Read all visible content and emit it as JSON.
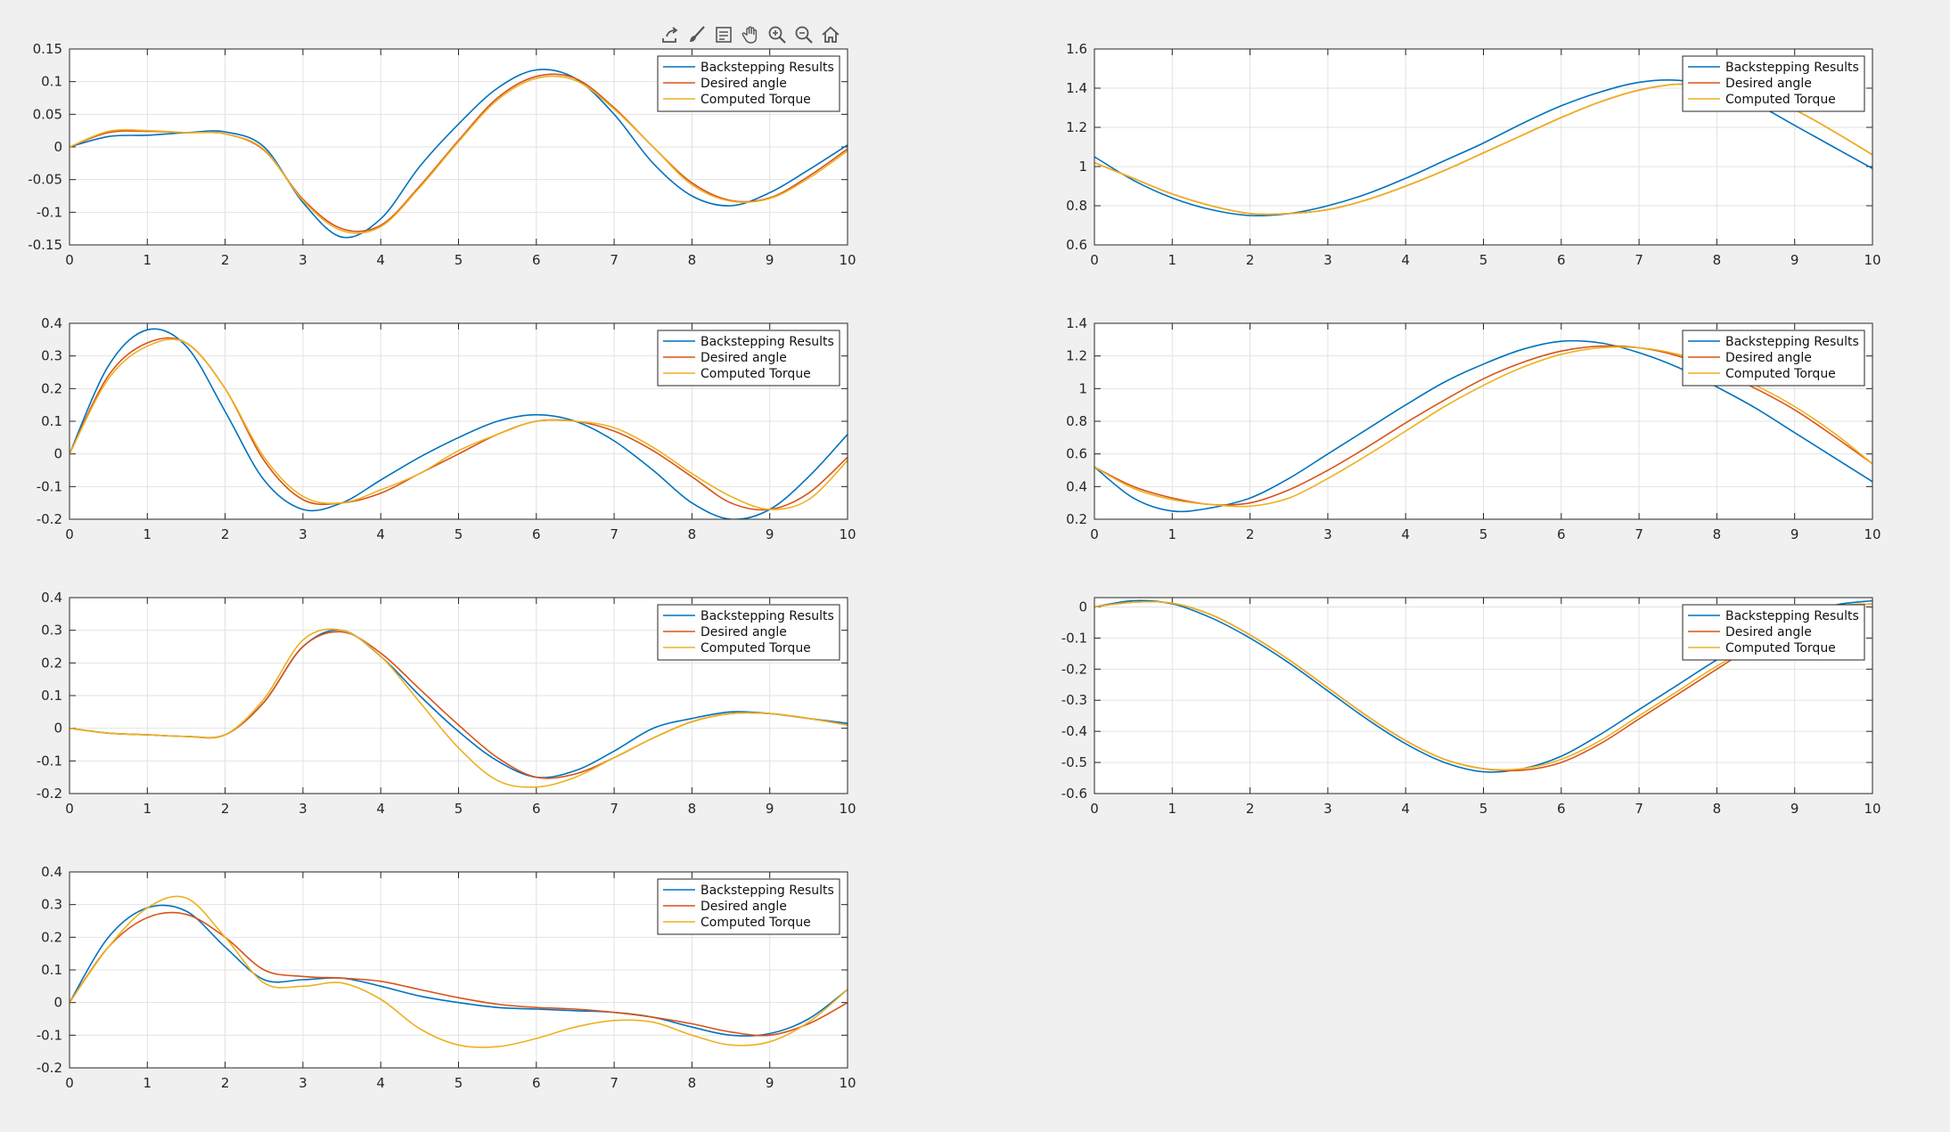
{
  "toolbar": [
    {
      "name": "export-icon",
      "label": "export"
    },
    {
      "name": "brush-icon",
      "label": "brush"
    },
    {
      "name": "datatip-icon",
      "label": "data tips"
    },
    {
      "name": "pan-icon",
      "label": "pan"
    },
    {
      "name": "zoom-in-icon",
      "label": "zoom in"
    },
    {
      "name": "zoom-out-icon",
      "label": "zoom out"
    },
    {
      "name": "home-icon",
      "label": "restore view"
    }
  ],
  "colors": {
    "series": [
      "#0072BD",
      "#D95319",
      "#EDB120"
    ],
    "grid": "#e2e2e2",
    "axis": "#262626",
    "background": "#f0f0f0",
    "axes_background": "#ffffff"
  },
  "chart_data": [
    {
      "type": "line",
      "grid": true,
      "legend": "top-right",
      "xlim": [
        0,
        10
      ],
      "ylim": [
        -0.15,
        0.15
      ],
      "xticks": [
        "0",
        "1",
        "2",
        "3",
        "4",
        "5",
        "6",
        "7",
        "8",
        "9",
        "10"
      ],
      "yticks": [
        "-0.15",
        "-0.1",
        "-0.05",
        "0",
        "0.05",
        "0.1",
        "0.15"
      ],
      "x": [
        0,
        0.5,
        1,
        1.5,
        2,
        2.5,
        3,
        3.5,
        4,
        4.5,
        5,
        5.5,
        6,
        6.5,
        7,
        7.5,
        8,
        8.5,
        9,
        9.5,
        10
      ],
      "series": [
        {
          "name": "Backstepping Results",
          "values": [
            0,
            0.016,
            0.018,
            0.022,
            0.023,
            0,
            -0.085,
            -0.138,
            -0.11,
            -0.03,
            0.035,
            0.09,
            0.118,
            0.105,
            0.05,
            -0.025,
            -0.075,
            -0.09,
            -0.07,
            -0.035,
            0.003
          ]
        },
        {
          "name": "Desired angle",
          "values": [
            0,
            0.022,
            0.024,
            0.022,
            0.02,
            -0.005,
            -0.08,
            -0.125,
            -0.12,
            -0.06,
            0.01,
            0.075,
            0.108,
            0.105,
            0.06,
            0,
            -0.055,
            -0.082,
            -0.078,
            -0.045,
            -0.003
          ]
        },
        {
          "name": "Computed Torque",
          "values": [
            0,
            0.024,
            0.025,
            0.022,
            0.02,
            -0.004,
            -0.082,
            -0.128,
            -0.122,
            -0.062,
            0.008,
            0.072,
            0.105,
            0.102,
            0.058,
            0,
            -0.058,
            -0.083,
            -0.079,
            -0.048,
            -0.006
          ]
        }
      ]
    },
    {
      "type": "line",
      "grid": true,
      "legend": "top-right",
      "xlim": [
        0,
        10
      ],
      "ylim": [
        0.6,
        1.6
      ],
      "xticks": [
        "0",
        "1",
        "2",
        "3",
        "4",
        "5",
        "6",
        "7",
        "8",
        "9",
        "10"
      ],
      "yticks": [
        "0.6",
        "0.8",
        "1",
        "1.2",
        "1.4",
        "1.6"
      ],
      "x": [
        0,
        0.5,
        1,
        1.5,
        2,
        2.5,
        3,
        3.5,
        4,
        4.5,
        5,
        5.5,
        6,
        6.5,
        7,
        7.5,
        8,
        8.5,
        9,
        9.5,
        10
      ],
      "series": [
        {
          "name": "Backstepping Results",
          "values": [
            1.05,
            0.93,
            0.84,
            0.78,
            0.75,
            0.76,
            0.8,
            0.86,
            0.94,
            1.03,
            1.12,
            1.22,
            1.31,
            1.38,
            1.43,
            1.44,
            1.4,
            1.32,
            1.21,
            1.1,
            0.99
          ]
        },
        {
          "name": "Desired angle",
          "values": [
            1.02,
            0.94,
            0.86,
            0.8,
            0.76,
            0.76,
            0.78,
            0.83,
            0.9,
            0.98,
            1.07,
            1.16,
            1.25,
            1.33,
            1.39,
            1.42,
            1.41,
            1.37,
            1.29,
            1.18,
            1.06
          ]
        },
        {
          "name": "Computed Torque",
          "values": [
            1.02,
            0.94,
            0.86,
            0.8,
            0.76,
            0.76,
            0.78,
            0.83,
            0.9,
            0.98,
            1.07,
            1.16,
            1.25,
            1.33,
            1.39,
            1.42,
            1.41,
            1.37,
            1.29,
            1.18,
            1.06
          ]
        }
      ]
    },
    {
      "type": "line",
      "grid": true,
      "legend": "top-right",
      "xlim": [
        0,
        10
      ],
      "ylim": [
        -0.2,
        0.4
      ],
      "xticks": [
        "0",
        "1",
        "2",
        "3",
        "4",
        "5",
        "6",
        "7",
        "8",
        "9",
        "10"
      ],
      "yticks": [
        "-0.2",
        "-0.1",
        "0",
        "0.1",
        "0.2",
        "0.3",
        "0.4"
      ],
      "x": [
        0,
        0.5,
        1,
        1.5,
        2,
        2.5,
        3,
        3.5,
        4,
        4.5,
        5,
        5.5,
        6,
        6.5,
        7,
        7.5,
        8,
        8.5,
        9,
        9.5,
        10
      ],
      "series": [
        {
          "name": "Backstepping Results",
          "values": [
            0,
            0.27,
            0.38,
            0.33,
            0.13,
            -0.08,
            -0.17,
            -0.15,
            -0.08,
            -0.01,
            0.05,
            0.1,
            0.12,
            0.1,
            0.04,
            -0.05,
            -0.15,
            -0.2,
            -0.17,
            -0.07,
            0.06
          ]
        },
        {
          "name": "Desired angle",
          "values": [
            0,
            0.24,
            0.34,
            0.34,
            0.2,
            -0.02,
            -0.14,
            -0.15,
            -0.12,
            -0.06,
            0,
            0.06,
            0.1,
            0.1,
            0.07,
            0.01,
            -0.07,
            -0.15,
            -0.17,
            -0.12,
            -0.01
          ]
        },
        {
          "name": "Computed Torque",
          "values": [
            0,
            0.23,
            0.33,
            0.34,
            0.2,
            -0.01,
            -0.13,
            -0.15,
            -0.11,
            -0.06,
            0.01,
            0.06,
            0.1,
            0.1,
            0.08,
            0.02,
            -0.06,
            -0.13,
            -0.17,
            -0.14,
            -0.02
          ]
        }
      ]
    },
    {
      "type": "line",
      "grid": true,
      "legend": "top-right",
      "xlim": [
        0,
        10
      ],
      "ylim": [
        0.2,
        1.4
      ],
      "xticks": [
        "0",
        "1",
        "2",
        "3",
        "4",
        "5",
        "6",
        "7",
        "8",
        "9",
        "10"
      ],
      "yticks": [
        "0.2",
        "0.4",
        "0.6",
        "0.8",
        "1",
        "1.2",
        "1.4"
      ],
      "x": [
        0,
        0.5,
        1,
        1.5,
        2,
        2.5,
        3,
        3.5,
        4,
        4.5,
        5,
        5.5,
        6,
        6.5,
        7,
        7.5,
        8,
        8.5,
        9,
        9.5,
        10
      ],
      "series": [
        {
          "name": "Backstepping Results",
          "values": [
            0.52,
            0.33,
            0.25,
            0.27,
            0.33,
            0.45,
            0.6,
            0.75,
            0.9,
            1.04,
            1.15,
            1.24,
            1.29,
            1.28,
            1.22,
            1.13,
            1.01,
            0.88,
            0.73,
            0.58,
            0.43
          ]
        },
        {
          "name": "Desired angle",
          "values": [
            0.52,
            0.4,
            0.33,
            0.29,
            0.3,
            0.38,
            0.5,
            0.64,
            0.79,
            0.93,
            1.06,
            1.16,
            1.23,
            1.26,
            1.25,
            1.2,
            1.11,
            1.0,
            0.87,
            0.71,
            0.54
          ]
        },
        {
          "name": "Computed Torque",
          "values": [
            0.52,
            0.39,
            0.32,
            0.29,
            0.28,
            0.33,
            0.45,
            0.59,
            0.74,
            0.89,
            1.02,
            1.13,
            1.21,
            1.25,
            1.25,
            1.21,
            1.13,
            1.02,
            0.89,
            0.73,
            0.54
          ]
        }
      ]
    },
    {
      "type": "line",
      "grid": true,
      "legend": "top-right",
      "xlim": [
        0,
        10
      ],
      "ylim": [
        -0.2,
        0.4
      ],
      "xticks": [
        "0",
        "1",
        "2",
        "3",
        "4",
        "5",
        "6",
        "7",
        "8",
        "9",
        "10"
      ],
      "yticks": [
        "-0.2",
        "-0.1",
        "0",
        "0.1",
        "0.2",
        "0.3",
        "0.4"
      ],
      "x": [
        0,
        0.5,
        1,
        1.5,
        2,
        2.5,
        3,
        3.5,
        4,
        4.5,
        5,
        5.5,
        6,
        6.5,
        7,
        7.5,
        8,
        8.5,
        9,
        9.5,
        10
      ],
      "series": [
        {
          "name": "Backstepping Results",
          "values": [
            0,
            -0.015,
            -0.02,
            -0.025,
            -0.02,
            0.08,
            0.25,
            0.3,
            0.22,
            0.1,
            -0.01,
            -0.1,
            -0.15,
            -0.13,
            -0.07,
            0,
            0.03,
            0.05,
            0.045,
            0.03,
            0.015
          ]
        },
        {
          "name": "Desired angle",
          "values": [
            0,
            -0.015,
            -0.02,
            -0.025,
            -0.02,
            0.08,
            0.25,
            0.295,
            0.23,
            0.12,
            0.01,
            -0.09,
            -0.15,
            -0.14,
            -0.09,
            -0.03,
            0.02,
            0.045,
            0.045,
            0.03,
            0.01
          ]
        },
        {
          "name": "Computed Torque",
          "values": [
            0,
            -0.015,
            -0.02,
            -0.025,
            -0.02,
            0.09,
            0.27,
            0.3,
            0.22,
            0.08,
            -0.06,
            -0.16,
            -0.18,
            -0.15,
            -0.09,
            -0.03,
            0.02,
            0.045,
            0.045,
            0.03,
            0.01
          ]
        }
      ]
    },
    {
      "type": "line",
      "grid": true,
      "legend": "top-right",
      "xlim": [
        0,
        10
      ],
      "ylim": [
        -0.6,
        0.03
      ],
      "xticks": [
        "0",
        "1",
        "2",
        "3",
        "4",
        "5",
        "6",
        "7",
        "8",
        "9",
        "10"
      ],
      "yticks": [
        "-0.6",
        "-0.5",
        "-0.4",
        "-0.3",
        "-0.2",
        "-0.1",
        "0"
      ],
      "x": [
        0,
        0.5,
        1,
        1.5,
        2,
        2.5,
        3,
        3.5,
        4,
        4.5,
        5,
        5.5,
        6,
        6.5,
        7,
        7.5,
        8,
        8.5,
        9,
        9.5,
        10
      ],
      "series": [
        {
          "name": "Backstepping Results",
          "values": [
            0,
            0.02,
            0.01,
            -0.035,
            -0.1,
            -0.18,
            -0.27,
            -0.36,
            -0.44,
            -0.5,
            -0.53,
            -0.52,
            -0.48,
            -0.41,
            -0.33,
            -0.25,
            -0.17,
            -0.1,
            -0.04,
            0.005,
            0.02
          ]
        },
        {
          "name": "Desired angle",
          "values": [
            0,
            0.015,
            0.012,
            -0.025,
            -0.09,
            -0.17,
            -0.26,
            -0.35,
            -0.43,
            -0.49,
            -0.52,
            -0.525,
            -0.5,
            -0.44,
            -0.36,
            -0.28,
            -0.2,
            -0.12,
            -0.05,
            0,
            0.01
          ]
        },
        {
          "name": "Computed Torque",
          "values": [
            0,
            0.015,
            0.012,
            -0.025,
            -0.09,
            -0.17,
            -0.26,
            -0.35,
            -0.43,
            -0.49,
            -0.52,
            -0.52,
            -0.49,
            -0.43,
            -0.35,
            -0.27,
            -0.19,
            -0.12,
            -0.05,
            0,
            0.01
          ]
        }
      ]
    },
    {
      "type": "line",
      "grid": true,
      "legend": "top-right",
      "xlim": [
        0,
        10
      ],
      "ylim": [
        -0.2,
        0.4
      ],
      "xticks": [
        "0",
        "1",
        "2",
        "3",
        "4",
        "5",
        "6",
        "7",
        "8",
        "9",
        "10"
      ],
      "yticks": [
        "-0.2",
        "-0.1",
        "0",
        "0.1",
        "0.2",
        "0.3",
        "0.4"
      ],
      "x": [
        0,
        0.5,
        1,
        1.5,
        2,
        2.5,
        3,
        3.5,
        4,
        4.5,
        5,
        5.5,
        6,
        6.5,
        7,
        7.5,
        8,
        8.5,
        9,
        9.5,
        10
      ],
      "series": [
        {
          "name": "Backstepping Results",
          "values": [
            0,
            0.2,
            0.29,
            0.28,
            0.17,
            0.07,
            0.07,
            0.075,
            0.05,
            0.02,
            0,
            -0.015,
            -0.02,
            -0.025,
            -0.03,
            -0.045,
            -0.075,
            -0.1,
            -0.095,
            -0.05,
            0.04
          ]
        },
        {
          "name": "Desired angle",
          "values": [
            0,
            0.17,
            0.26,
            0.27,
            0.2,
            0.1,
            0.08,
            0.075,
            0.065,
            0.04,
            0.015,
            -0.005,
            -0.015,
            -0.02,
            -0.03,
            -0.045,
            -0.065,
            -0.09,
            -0.1,
            -0.065,
            0
          ]
        },
        {
          "name": "Computed Torque",
          "values": [
            0,
            0.17,
            0.29,
            0.32,
            0.2,
            0.06,
            0.05,
            0.06,
            0.01,
            -0.08,
            -0.13,
            -0.135,
            -0.11,
            -0.075,
            -0.055,
            -0.06,
            -0.1,
            -0.13,
            -0.12,
            -0.06,
            0.04
          ]
        }
      ]
    }
  ]
}
